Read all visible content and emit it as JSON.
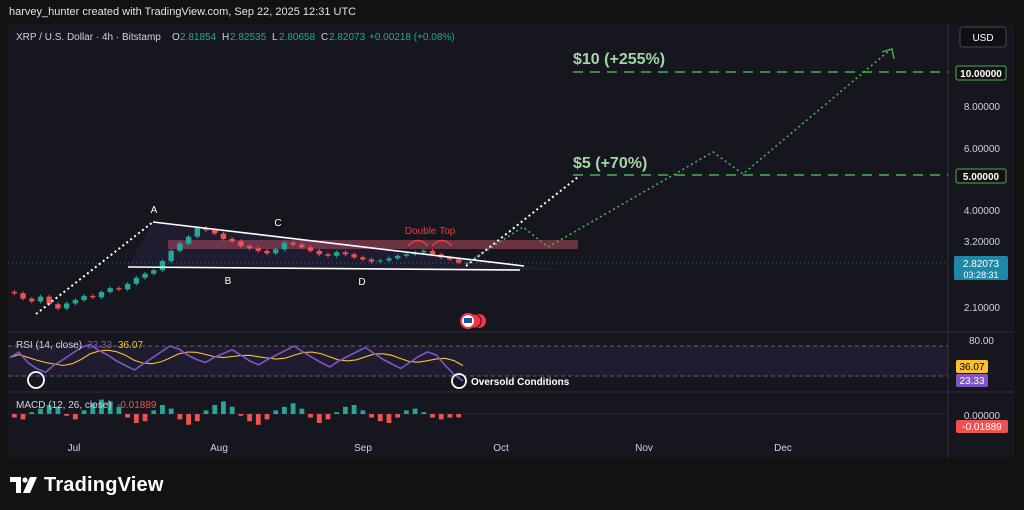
{
  "header": {
    "caption": "harvey_hunter created with TradingView.com, Sep 22, 2025 12:31 UTC"
  },
  "legend": {
    "symbol": "XRP / U.S. Dollar · 4h · Bitstamp",
    "open_label": "O",
    "open": "2.81854",
    "high_label": "H",
    "high": "2.82535",
    "low_label": "L",
    "low": "2.80658",
    "close_label": "C",
    "close": "2.82073",
    "change": "+0.00218 (+0.08%)"
  },
  "currency_button": "USD",
  "brand": {
    "name": "TradingView"
  },
  "colors": {
    "background": "#16161f",
    "candle_up": "#26a69a",
    "candle_down": "#ef5350",
    "target_green": "#4caf50",
    "target_label": "#a5d6a7",
    "white_lines": "#ffffff",
    "resistance_zone": "#b24a5a",
    "double_top": "#f23645",
    "rsi_line": "#7e57c2",
    "rsi_ma": "#fbc02d",
    "macd_pos": "#26a69a",
    "macd_neg": "#ef5350"
  },
  "chart_data": {
    "type": "candlestick",
    "x_axis": {
      "ticks": [
        "Jul",
        "Aug",
        "Sep",
        "Oct",
        "Nov",
        "Dec"
      ]
    },
    "price_axis": {
      "scale": "log",
      "ticks": [
        "10.00000",
        "8.00000",
        "6.00000",
        "5.00000",
        "4.00000",
        "3.20000",
        "2.10000"
      ],
      "current_price": "2.82073",
      "countdown": "03:28:31"
    },
    "price_series_close": [
      2.3,
      2.22,
      2.18,
      2.25,
      2.14,
      2.08,
      2.15,
      2.2,
      2.26,
      2.24,
      2.32,
      2.38,
      2.36,
      2.45,
      2.55,
      2.62,
      2.68,
      2.85,
      3.05,
      3.2,
      3.35,
      3.55,
      3.5,
      3.42,
      3.3,
      3.25,
      3.15,
      3.1,
      3.05,
      3.0,
      3.08,
      3.22,
      3.18,
      3.12,
      3.05,
      2.98,
      2.95,
      3.02,
      2.98,
      2.92,
      2.88,
      2.84,
      2.86,
      2.9,
      2.95,
      2.98,
      3.02,
      3.05,
      2.98,
      2.92,
      2.88,
      2.82
    ],
    "annotations": {
      "points": [
        "A",
        "B",
        "C",
        "D"
      ],
      "double_top": "Double Top",
      "target_1": {
        "label": "$5 (+70%)",
        "price": "5.00000"
      },
      "target_2": {
        "label": "$10 (+255%)",
        "price": "10.00000"
      }
    },
    "rsi": {
      "title": "RSI (14, close)",
      "value": "23.33",
      "ma_value": "36.07",
      "ticks": [
        "80.00"
      ],
      "annotation": "Oversold Conditions",
      "series": [
        55,
        62,
        48,
        40,
        35,
        45,
        52,
        60,
        68,
        72,
        64,
        58,
        50,
        44,
        38,
        46,
        54,
        62,
        70,
        66,
        58,
        52,
        48,
        55,
        60,
        65,
        58,
        50,
        45,
        52,
        58,
        64,
        70,
        62,
        55,
        48,
        42,
        50,
        56,
        62,
        68,
        60,
        52,
        46,
        40,
        48,
        56,
        62,
        58,
        44,
        32,
        23.33
      ]
    },
    "macd": {
      "title": "MACD (12, 26, close)",
      "value": "-0.01889",
      "ticks": [
        "0.00000"
      ],
      "histogram": [
        -0.02,
        -0.03,
        0.01,
        0.03,
        0.05,
        0.04,
        -0.01,
        -0.03,
        0.02,
        0.06,
        0.08,
        0.07,
        0.04,
        -0.02,
        -0.05,
        -0.04,
        0.02,
        0.05,
        0.03,
        -0.03,
        -0.06,
        -0.04,
        0.02,
        0.05,
        0.07,
        0.04,
        -0.01,
        -0.04,
        -0.06,
        -0.03,
        0.02,
        0.04,
        0.06,
        0.03,
        -0.02,
        -0.05,
        -0.03,
        0.01,
        0.04,
        0.05,
        0.02,
        -0.02,
        -0.04,
        -0.05,
        -0.02,
        0.02,
        0.03,
        0.01,
        -0.02,
        -0.03,
        -0.02,
        -0.01889
      ]
    }
  }
}
